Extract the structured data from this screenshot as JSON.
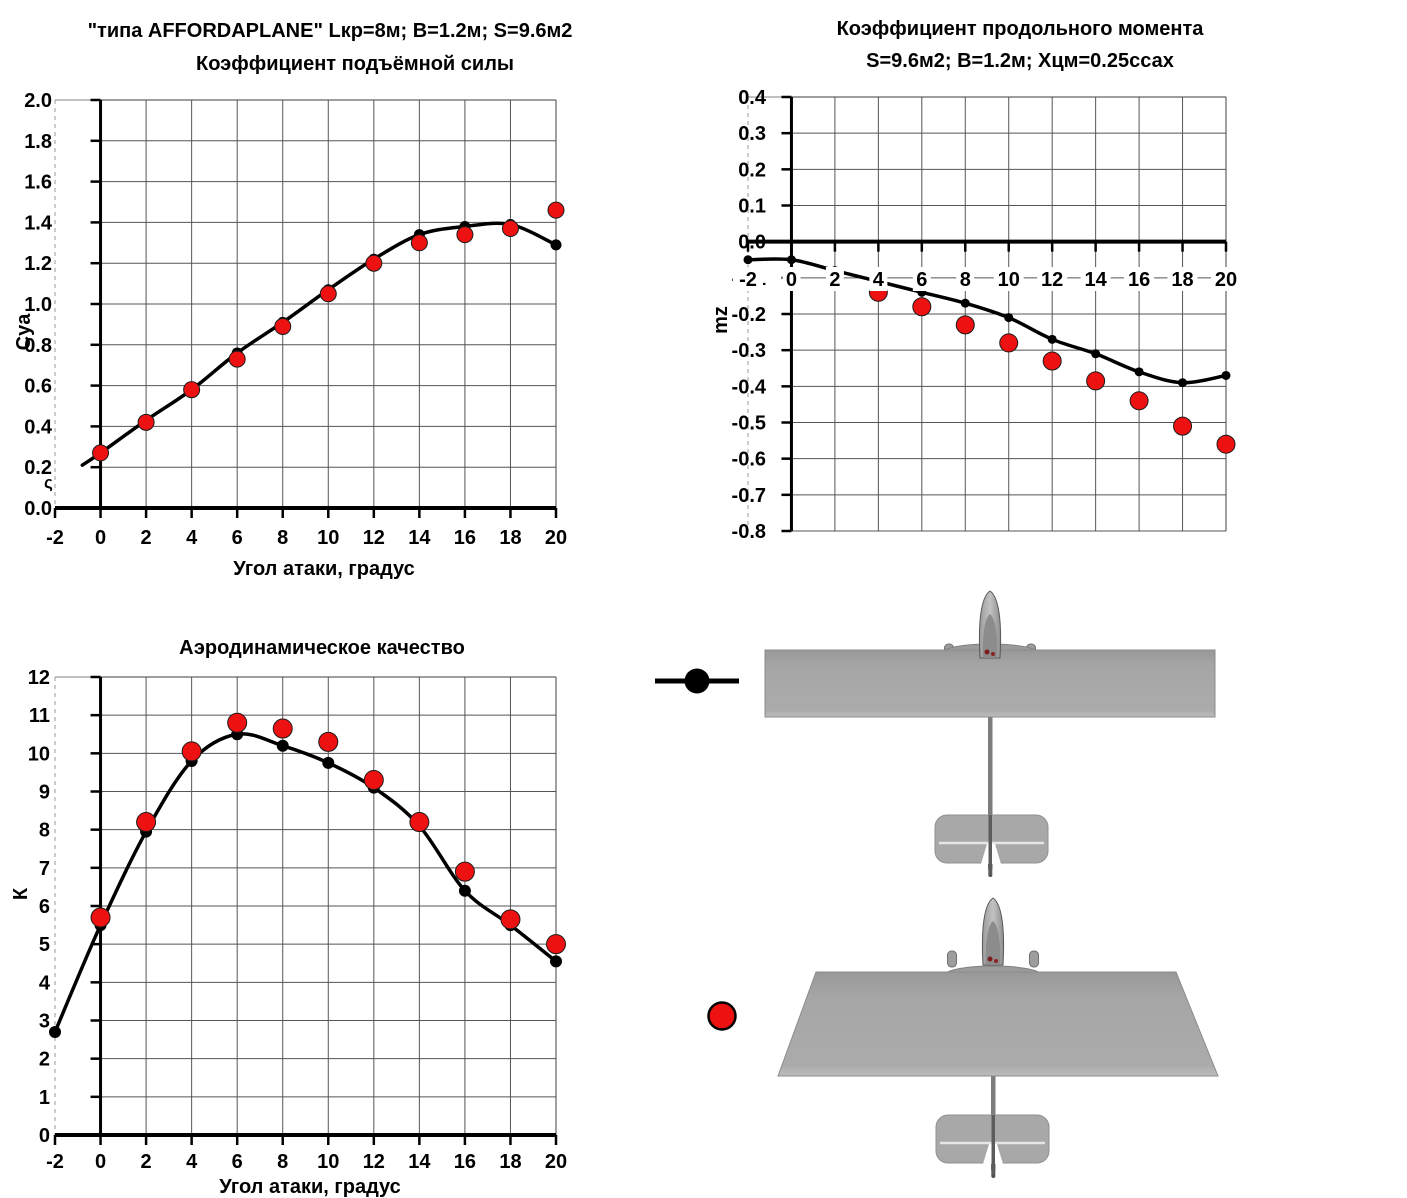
{
  "page": {
    "background": "#ffffff"
  },
  "colors": {
    "series_black": "#000000",
    "series_red": "#ee1111",
    "airplane_gray": "#a5a5a5",
    "airplane_outline": "#8b8b8b",
    "gridline": "#555555"
  },
  "chart_data": [
    {
      "id": "lift",
      "type": "line",
      "title": "\"типа AFFORDAPLANE\"  Lкр=8м;  В=1.2м;  S=9.6м2",
      "subtitle": "Коэффициент подъёмной силы",
      "xlabel": "Угол атаки, градус",
      "ylabel": "Cya",
      "x_range": [
        -2,
        20
      ],
      "y_range": [
        0.0,
        2.0
      ],
      "x_tick_step": 2,
      "y_tick_step": 0.2,
      "y_tick_decimals": 1,
      "grid": true,
      "x_ticks": [
        "-2",
        "0",
        "2",
        "4",
        "6",
        "8",
        "10",
        "12",
        "14",
        "16",
        "18",
        "20"
      ],
      "y_ticks": [
        "0.0",
        "0.2",
        "0.4",
        "0.6",
        "0.8",
        "1.0",
        "1.2",
        "1.4",
        "1.6",
        "1.8",
        "2.0"
      ],
      "x": [
        0,
        2,
        4,
        6,
        8,
        10,
        12,
        14,
        16,
        18,
        20
      ],
      "series": [
        {
          "name": "black-dots-line",
          "color": "#000000",
          "marker_r": 5.5,
          "line": true,
          "lead_in": {
            "x": -0.8,
            "y": 0.21
          },
          "values": [
            0.27,
            0.43,
            0.58,
            0.76,
            0.91,
            1.07,
            1.22,
            1.34,
            1.38,
            1.39,
            1.29
          ]
        },
        {
          "name": "red-dots",
          "color": "#ee1111",
          "marker_r": 8,
          "line": false,
          "values": [
            0.27,
            0.42,
            0.58,
            0.73,
            0.89,
            1.05,
            1.2,
            1.3,
            1.34,
            1.37,
            1.46
          ]
        }
      ]
    },
    {
      "id": "moment",
      "type": "line",
      "title": "Коэффициент продольного момента",
      "subtitle": "S=9.6м2;  В=1.2м;  Хцм=0.25ссах",
      "xlabel": "",
      "ylabel": "mz",
      "x_range": [
        -2,
        20
      ],
      "y_range": [
        -0.8,
        0.4
      ],
      "x_tick_step": 2,
      "y_tick_step": 0.1,
      "y_tick_decimals": 1,
      "grid": true,
      "x_ticks": [
        "-2",
        "0",
        "2",
        "4",
        "6",
        "8",
        "10",
        "12",
        "14",
        "16",
        "18",
        "20"
      ],
      "y_ticks": [
        "-0.8",
        "-0.7",
        "-0.6",
        "-0.5",
        "-0.4",
        "-0.3",
        "-0.2",
        "-0.1",
        "0.0",
        "0.1",
        "0.2",
        "0.3",
        "0.4"
      ],
      "x": [
        -2,
        0,
        2,
        4,
        6,
        8,
        10,
        12,
        14,
        16,
        18,
        20
      ],
      "series": [
        {
          "name": "black-dots-line",
          "color": "#000000",
          "marker_r": 4.5,
          "line": true,
          "values": [
            -0.05,
            -0.05,
            -0.08,
            -0.11,
            -0.14,
            -0.17,
            -0.21,
            -0.27,
            -0.31,
            -0.36,
            -0.39,
            -0.37
          ]
        },
        {
          "name": "red-dots",
          "color": "#ee1111",
          "marker_r": 9,
          "line": false,
          "values": [
            null,
            null,
            null,
            -0.14,
            -0.18,
            -0.23,
            -0.28,
            -0.33,
            -0.385,
            -0.44,
            -0.51,
            -0.56
          ]
        }
      ]
    },
    {
      "id": "quality",
      "type": "line",
      "title": "Аэродинамическое качество",
      "xlabel": "Угол атаки, градус",
      "ylabel": "К",
      "x_range": [
        -2,
        20
      ],
      "y_range": [
        0,
        12
      ],
      "x_tick_step": 2,
      "y_tick_step": 1,
      "y_tick_decimals": 0,
      "grid": true,
      "x_ticks": [
        "-2",
        "0",
        "2",
        "4",
        "6",
        "8",
        "10",
        "12",
        "14",
        "16",
        "18",
        "20"
      ],
      "y_ticks": [
        "0",
        "1",
        "2",
        "3",
        "4",
        "5",
        "6",
        "7",
        "8",
        "9",
        "10",
        "11",
        "12"
      ],
      "x": [
        -2,
        0,
        2,
        4,
        6,
        8,
        10,
        12,
        14,
        16,
        18,
        20
      ],
      "series": [
        {
          "name": "black-dots-line",
          "color": "#000000",
          "marker_r": 6,
          "line": true,
          "values": [
            2.7,
            5.5,
            7.95,
            9.8,
            10.5,
            10.2,
            9.75,
            9.1,
            8.1,
            6.4,
            5.5,
            4.55
          ]
        },
        {
          "name": "red-dots",
          "color": "#ee1111",
          "marker_r": 9.5,
          "line": false,
          "values": [
            null,
            5.7,
            8.2,
            10.05,
            10.8,
            10.65,
            10.3,
            9.3,
            8.2,
            6.9,
            5.65,
            5.0
          ]
        }
      ]
    }
  ],
  "legend": {
    "black_marker_icon": "line-with-dot-marker",
    "red_marker_icon": "red-dot-marker"
  },
  "figures": {
    "top_figure_icon": "airplane-top-view-rectangular-wing",
    "bottom_figure_icon": "airplane-top-view-trapezoidal-wing"
  },
  "stray_glyph": "ς"
}
